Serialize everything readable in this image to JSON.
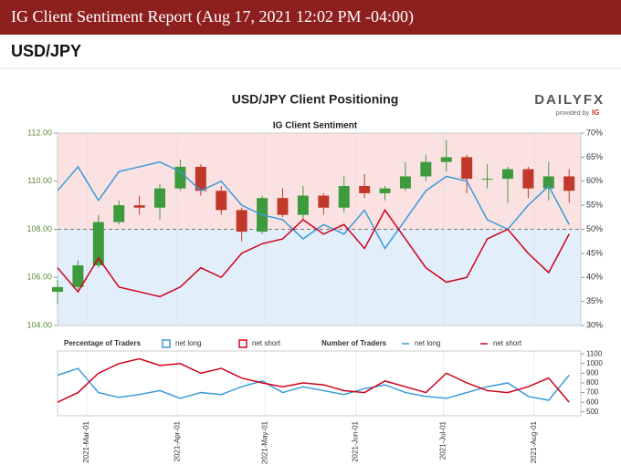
{
  "header": {
    "title": "IG Client Sentiment Report (Aug 17, 2021 12:02 PM -04:00)",
    "subtitle": "USD/JPY"
  },
  "logo": {
    "name": "DAILYFX",
    "tagline": "provided by",
    "brand": "IG"
  },
  "chart_data": [
    {
      "type": "candlestick",
      "title": "USD/JPY Client Positioning",
      "subtitle": "IG Client Sentiment",
      "legend_title": "Percentage of Traders",
      "x": [
        "2021-Feb-19",
        "2021-Feb-26",
        "2021-Mar-05",
        "2021-Mar-12",
        "2021-Mar-19",
        "2021-Mar-26",
        "2021-Apr-02",
        "2021-Apr-09",
        "2021-Apr-16",
        "2021-Apr-23",
        "2021-Apr-30",
        "2021-May-07",
        "2021-May-14",
        "2021-May-21",
        "2021-May-28",
        "2021-Jun-04",
        "2021-Jun-11",
        "2021-Jun-18",
        "2021-Jun-25",
        "2021-Jul-02",
        "2021-Jul-09",
        "2021-Jul-16",
        "2021-Jul-23",
        "2021-Jul-30",
        "2021-Aug-06",
        "2021-Aug-13"
      ],
      "open": [
        105.4,
        105.6,
        106.5,
        108.3,
        109.0,
        108.9,
        109.7,
        110.6,
        109.6,
        108.8,
        107.9,
        109.3,
        108.6,
        109.4,
        108.9,
        109.8,
        109.5,
        109.7,
        110.2,
        110.8,
        111.0,
        110.1,
        110.1,
        110.5,
        109.7,
        110.2
      ],
      "high": [
        105.9,
        106.7,
        108.6,
        109.2,
        109.4,
        109.9,
        110.9,
        110.7,
        109.8,
        108.9,
        109.4,
        109.7,
        109.8,
        109.5,
        110.2,
        110.3,
        109.8,
        110.8,
        111.1,
        111.7,
        111.1,
        110.7,
        110.6,
        110.6,
        110.8,
        110.5
      ],
      "low": [
        104.9,
        105.5,
        106.4,
        108.2,
        108.6,
        108.4,
        109.6,
        109.4,
        108.6,
        107.5,
        107.8,
        108.5,
        108.4,
        108.6,
        108.7,
        109.3,
        109.2,
        109.6,
        110.0,
        110.4,
        109.5,
        109.7,
        109.1,
        109.3,
        109.2,
        109.1
      ],
      "close": [
        105.6,
        106.5,
        108.3,
        109.0,
        108.9,
        109.7,
        110.6,
        109.6,
        108.8,
        107.9,
        109.3,
        108.6,
        109.4,
        108.9,
        109.8,
        109.5,
        109.7,
        110.2,
        110.8,
        111.0,
        110.1,
        110.1,
        110.5,
        109.7,
        110.2,
        109.6
      ],
      "up_color": "#3d9a3d",
      "down_color": "#c0392b",
      "series": [
        {
          "name": "net long",
          "color": "#3a9ad9",
          "axis": "y2",
          "values": [
            58,
            63,
            56,
            62,
            63,
            64,
            62,
            58,
            60,
            55,
            53,
            52,
            48,
            51,
            49,
            54,
            46,
            52,
            58,
            61,
            60,
            52,
            50,
            55,
            59,
            51
          ]
        },
        {
          "name": "net short",
          "color": "#d0021b",
          "axis": "y2",
          "values": [
            42,
            37,
            44,
            38,
            37,
            36,
            38,
            42,
            40,
            45,
            47,
            48,
            52,
            49,
            51,
            46,
            54,
            48,
            42,
            39,
            40,
            48,
            50,
            45,
            41,
            49
          ]
        }
      ],
      "xlim": [
        "2021-Feb-19",
        "2021-Aug-17"
      ],
      "ylim": [
        104,
        112
      ],
      "yticks": [
        {
          "value": 104,
          "label": "104.00"
        },
        {
          "value": 106,
          "label": "106.00"
        },
        {
          "value": 108,
          "label": "108.00"
        },
        {
          "value": 110,
          "label": "110.00"
        },
        {
          "value": 112,
          "label": "112.00"
        }
      ],
      "y2lim": [
        30,
        70
      ],
      "y2ticks": [
        {
          "value": 30,
          "label": "30%"
        },
        {
          "value": 35,
          "label": "35%"
        },
        {
          "value": 40,
          "label": "40%"
        },
        {
          "value": 45,
          "label": "45%"
        },
        {
          "value": 50,
          "label": "50%"
        },
        {
          "value": 55,
          "label": "55%"
        },
        {
          "value": 60,
          "label": "60%"
        },
        {
          "value": 65,
          "label": "65%"
        },
        {
          "value": 70,
          "label": "70%"
        }
      ]
    },
    {
      "type": "line",
      "legend_title": "Number of Traders",
      "x": [
        "2021-Feb-19",
        "2021-Feb-26",
        "2021-Mar-05",
        "2021-Mar-12",
        "2021-Mar-19",
        "2021-Mar-26",
        "2021-Apr-02",
        "2021-Apr-09",
        "2021-Apr-16",
        "2021-Apr-23",
        "2021-Apr-30",
        "2021-May-07",
        "2021-May-14",
        "2021-May-21",
        "2021-May-28",
        "2021-Jun-04",
        "2021-Jun-11",
        "2021-Jun-18",
        "2021-Jun-25",
        "2021-Jul-02",
        "2021-Jul-09",
        "2021-Jul-16",
        "2021-Jul-23",
        "2021-Jul-30",
        "2021-Aug-06",
        "2021-Aug-13"
      ],
      "series": [
        {
          "name": "net long",
          "color": "#3a9ad9",
          "axis": "y2",
          "values": [
            880,
            950,
            700,
            650,
            680,
            720,
            640,
            700,
            680,
            760,
            820,
            700,
            760,
            720,
            680,
            740,
            780,
            700,
            660,
            640,
            700,
            760,
            800,
            660,
            620,
            880
          ]
        },
        {
          "name": "net short",
          "color": "#d0021b",
          "axis": "y2",
          "values": [
            600,
            700,
            900,
            1000,
            1050,
            980,
            1000,
            900,
            950,
            850,
            800,
            760,
            800,
            780,
            720,
            700,
            820,
            760,
            700,
            900,
            800,
            720,
            700,
            760,
            850,
            600
          ]
        }
      ],
      "xlim": [
        "2021-Feb-19",
        "2021-Aug-17"
      ],
      "xticks": [
        "2021-Mar-01",
        "2021-Apr-01",
        "2021-May-01",
        "2021-Jun-01",
        "2021-Jul-01",
        "2021-Aug-01"
      ],
      "y2lim": [
        460,
        1130
      ],
      "y2ticks": [
        500,
        600,
        700,
        800,
        900,
        1000,
        1100
      ]
    }
  ]
}
